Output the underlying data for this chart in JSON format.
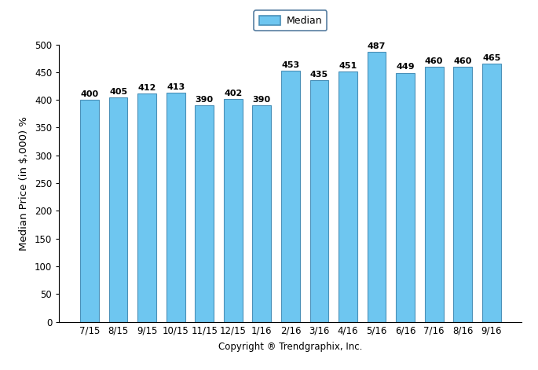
{
  "categories": [
    "7/15",
    "8/15",
    "9/15",
    "10/15",
    "11/15",
    "12/15",
    "1/16",
    "2/16",
    "3/16",
    "4/16",
    "5/16",
    "6/16",
    "7/16",
    "8/16",
    "9/16"
  ],
  "values": [
    400,
    405,
    412,
    413,
    390,
    402,
    390,
    453,
    435,
    451,
    487,
    449,
    460,
    460,
    465
  ],
  "bar_color": "#6EC6F0",
  "bar_edge_color": "#4A90B8",
  "ylabel": "Median Price (in $,000) %",
  "xlabel": "Copyright ® Trendgraphix, Inc.",
  "ylim": [
    0,
    500
  ],
  "yticks": [
    0,
    50,
    100,
    150,
    200,
    250,
    300,
    350,
    400,
    450,
    500
  ],
  "legend_label": "Median",
  "legend_box_color": "#6EC6F0",
  "legend_box_edge_color": "#4A90B8",
  "bar_width": 0.65,
  "label_fontsize": 8,
  "axis_fontsize": 8.5,
  "ylabel_fontsize": 9.5,
  "xlabel_fontsize": 8.5
}
